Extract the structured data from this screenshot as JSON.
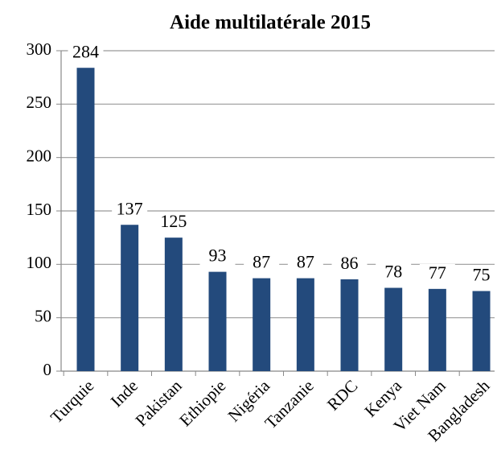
{
  "chart_data": {
    "type": "bar",
    "title": "Aide multilatérale 2015",
    "categories": [
      "Turquie",
      "Inde",
      "Pakistan",
      "Ethiopie",
      "Nigéria",
      "Tanzanie",
      "RDC",
      "Kenya",
      "Viet Nam",
      "Bangladesh"
    ],
    "values": [
      284,
      137,
      125,
      93,
      87,
      87,
      86,
      78,
      77,
      75
    ],
    "color": "#234a7c",
    "ylim": [
      0,
      300
    ],
    "yticks": [
      0,
      50,
      100,
      150,
      200,
      250,
      300
    ],
    "grid": true
  }
}
